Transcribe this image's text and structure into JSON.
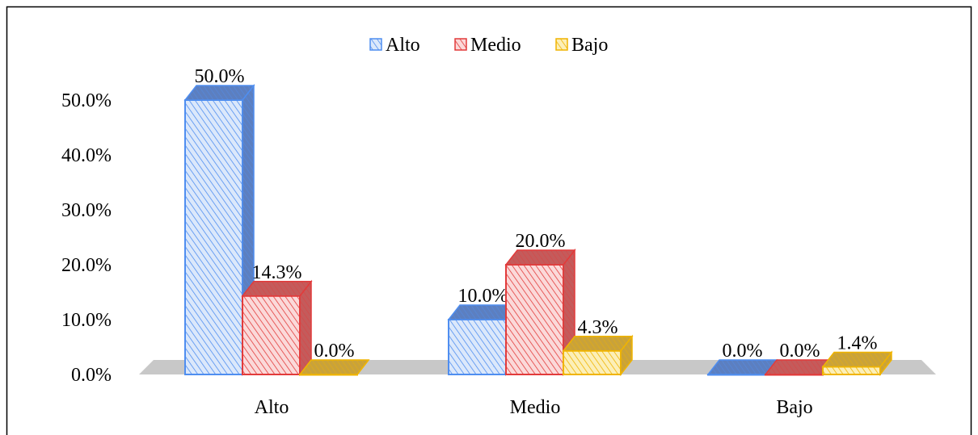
{
  "chart_data": {
    "type": "bar",
    "categories": [
      "Alto",
      "Medio",
      "Bajo"
    ],
    "series": [
      {
        "name": "Alto",
        "values": [
          50.0,
          10.0,
          0.0
        ],
        "labels": [
          "50.0%",
          "10.0%",
          "0.0%"
        ]
      },
      {
        "name": "Medio",
        "values": [
          14.3,
          20.0,
          0.0
        ],
        "labels": [
          "14.3%",
          "20.0%",
          "0.0%"
        ]
      },
      {
        "name": "Bajo",
        "values": [
          0.0,
          4.3,
          1.4
        ],
        "labels": [
          "0.0%",
          "4.3%",
          "1.4%"
        ]
      }
    ],
    "y_ticks": [
      "0.0%",
      "10.0%",
      "20.0%",
      "30.0%",
      "40.0%",
      "50.0%"
    ],
    "ylim": [
      0,
      50
    ],
    "title": "",
    "xlabel": "",
    "ylabel": "",
    "legend_position": "top-center",
    "grid": false,
    "colors": {
      "Alto": {
        "fill": "#dbe8fb",
        "stroke": "#4f8ef0",
        "side": "#5c7fc0"
      },
      "Medio": {
        "fill": "#fbd9d9",
        "stroke": "#e23b3b",
        "side": "#c45b5b"
      },
      "Bajo": {
        "fill": "#fcefb8",
        "stroke": "#f0b400",
        "side": "#c9a23a"
      },
      "floor": "#c8c8c8"
    }
  }
}
